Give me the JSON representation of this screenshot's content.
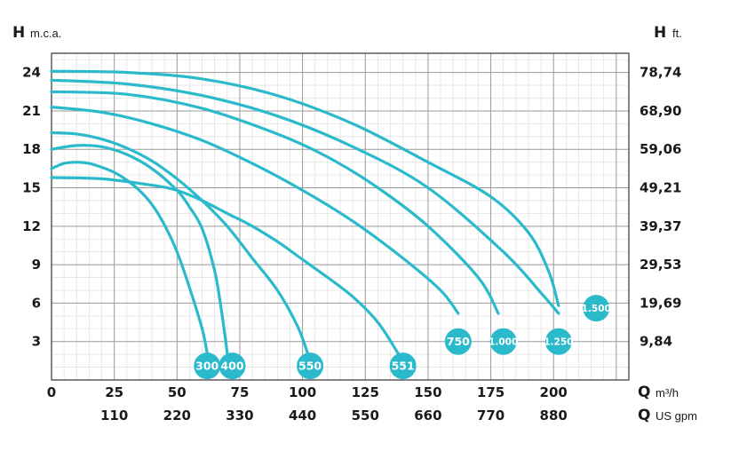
{
  "chart_data": {
    "type": "line",
    "y_left": {
      "letter": "H",
      "unit": "m.c.a.",
      "ticks": [
        "24",
        "21",
        "18",
        "15",
        "12",
        "9",
        "6",
        "3"
      ],
      "values": [
        24,
        21,
        18,
        15,
        12,
        9,
        6,
        3
      ],
      "range": [
        0,
        24
      ]
    },
    "y_right": {
      "letter": "H",
      "unit": "ft.",
      "ticks": [
        "78,74",
        "68,90",
        "59,06",
        "49,21",
        "39,37",
        "29,53",
        "19,69",
        "9,84"
      ]
    },
    "x_primary": {
      "letter": "Q",
      "unit": "m³/h",
      "ticks": [
        "0",
        "25",
        "50",
        "75",
        "100",
        "125",
        "150",
        "175",
        "200"
      ],
      "values": [
        0,
        25,
        50,
        75,
        100,
        125,
        150,
        175,
        200
      ],
      "range": [
        0,
        230
      ]
    },
    "x_secondary": {
      "letter": "Q",
      "unit": "US gpm",
      "ticks": [
        "110",
        "220",
        "330",
        "440",
        "550",
        "660",
        "770",
        "880"
      ],
      "values": [
        25,
        50,
        75,
        100,
        125,
        150,
        175,
        200
      ]
    },
    "grid": true,
    "line_color": "#2bbacb",
    "series": [
      {
        "name": "300",
        "points": [
          [
            0,
            16.5
          ],
          [
            5,
            16.9
          ],
          [
            10,
            17.0
          ],
          [
            15,
            16.9
          ],
          [
            20,
            16.6
          ],
          [
            25,
            16.2
          ],
          [
            30,
            15.6
          ],
          [
            35,
            14.8
          ],
          [
            40,
            13.7
          ],
          [
            45,
            12.1
          ],
          [
            50,
            10.0
          ],
          [
            55,
            7.2
          ],
          [
            60,
            4.0
          ],
          [
            62,
            2.1
          ]
        ]
      },
      {
        "name": "400",
        "points": [
          [
            0,
            18.0
          ],
          [
            10,
            18.3
          ],
          [
            20,
            18.2
          ],
          [
            30,
            17.6
          ],
          [
            40,
            16.5
          ],
          [
            50,
            14.8
          ],
          [
            55,
            13.5
          ],
          [
            60,
            11.8
          ],
          [
            65,
            8.5
          ],
          [
            68,
            5.0
          ],
          [
            70,
            2.1
          ]
        ]
      },
      {
        "name": "550",
        "points": [
          [
            0,
            19.3
          ],
          [
            10,
            19.2
          ],
          [
            20,
            18.8
          ],
          [
            30,
            18.1
          ],
          [
            40,
            17.1
          ],
          [
            50,
            15.7
          ],
          [
            60,
            14.0
          ],
          [
            70,
            12.0
          ],
          [
            80,
            9.5
          ],
          [
            90,
            7.0
          ],
          [
            98,
            4.2
          ],
          [
            102,
            2.1
          ]
        ]
      },
      {
        "name": "551",
        "points": [
          [
            0,
            15.8
          ],
          [
            20,
            15.7
          ],
          [
            40,
            15.2
          ],
          [
            50,
            14.8
          ],
          [
            60,
            14.0
          ],
          [
            70,
            13.0
          ],
          [
            80,
            12.0
          ],
          [
            90,
            10.8
          ],
          [
            100,
            9.4
          ],
          [
            110,
            8.0
          ],
          [
            120,
            6.5
          ],
          [
            130,
            4.5
          ],
          [
            138,
            2.1
          ]
        ]
      },
      {
        "name": "750",
        "points": [
          [
            0,
            21.3
          ],
          [
            20,
            20.9
          ],
          [
            40,
            20.0
          ],
          [
            60,
            18.7
          ],
          [
            80,
            16.9
          ],
          [
            100,
            14.8
          ],
          [
            120,
            12.4
          ],
          [
            140,
            9.5
          ],
          [
            155,
            7.0
          ],
          [
            162,
            5.2
          ]
        ]
      },
      {
        "name": "1.000",
        "points": [
          [
            0,
            22.5
          ],
          [
            30,
            22.3
          ],
          [
            60,
            21.2
          ],
          [
            90,
            19.2
          ],
          [
            110,
            17.4
          ],
          [
            130,
            15.0
          ],
          [
            150,
            12.0
          ],
          [
            170,
            8.0
          ],
          [
            178,
            5.2
          ]
        ]
      },
      {
        "name": "1.250",
        "points": [
          [
            0,
            23.4
          ],
          [
            30,
            23.1
          ],
          [
            60,
            22.2
          ],
          [
            90,
            20.6
          ],
          [
            120,
            18.2
          ],
          [
            150,
            15.0
          ],
          [
            180,
            10.0
          ],
          [
            195,
            6.8
          ],
          [
            202,
            5.2
          ]
        ]
      },
      {
        "name": "1.500",
        "points": [
          [
            0,
            24.1
          ],
          [
            30,
            24.0
          ],
          [
            60,
            23.5
          ],
          [
            90,
            22.2
          ],
          [
            120,
            20.0
          ],
          [
            150,
            17.0
          ],
          [
            175,
            14.3
          ],
          [
            190,
            11.5
          ],
          [
            198,
            8.5
          ],
          [
            202,
            5.8
          ]
        ]
      }
    ],
    "badges": [
      {
        "label": "300",
        "x": 62,
        "y": 1.1
      },
      {
        "label": "400",
        "x": 72,
        "y": 1.1
      },
      {
        "label": "550",
        "x": 103,
        "y": 1.1
      },
      {
        "label": "551",
        "x": 140,
        "y": 1.1
      },
      {
        "label": "750",
        "x": 162,
        "y": 3.0
      },
      {
        "label": "1.000",
        "x": 180,
        "y": 3.0
      },
      {
        "label": "1.250",
        "x": 202,
        "y": 3.0
      },
      {
        "label": "1.500",
        "x": 217,
        "y": 5.6
      }
    ]
  }
}
